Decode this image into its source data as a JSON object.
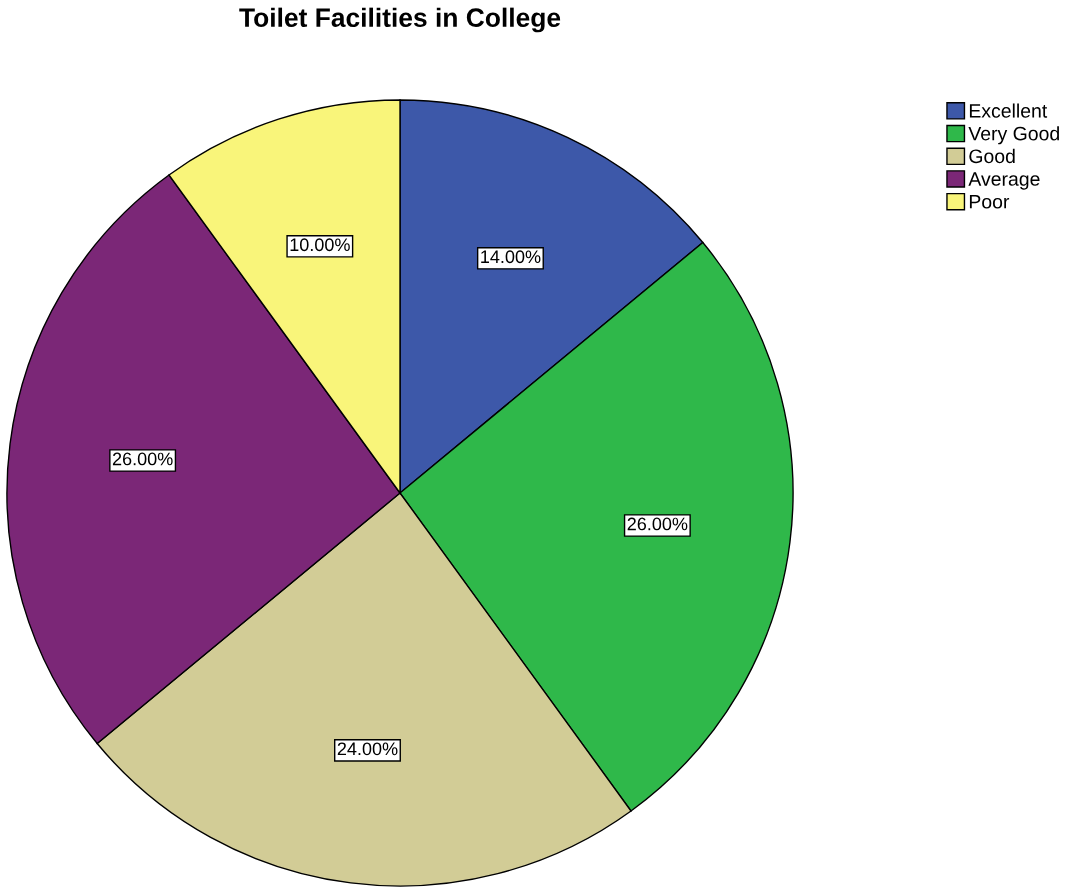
{
  "chart_data": {
    "type": "pie",
    "title": "Toilet Facilities in College",
    "categories": [
      "Excellent",
      "Very Good",
      "Good",
      "Average",
      "Poor"
    ],
    "values": [
      14,
      26,
      24,
      26,
      10
    ],
    "value_labels": [
      "14.00%",
      "26.00%",
      "24.00%",
      "26.00%",
      "10.00%"
    ],
    "colors": [
      "#3d58a9",
      "#2fb84a",
      "#d2cc96",
      "#7b2777",
      "#f9f57a"
    ],
    "legend": "top right"
  }
}
